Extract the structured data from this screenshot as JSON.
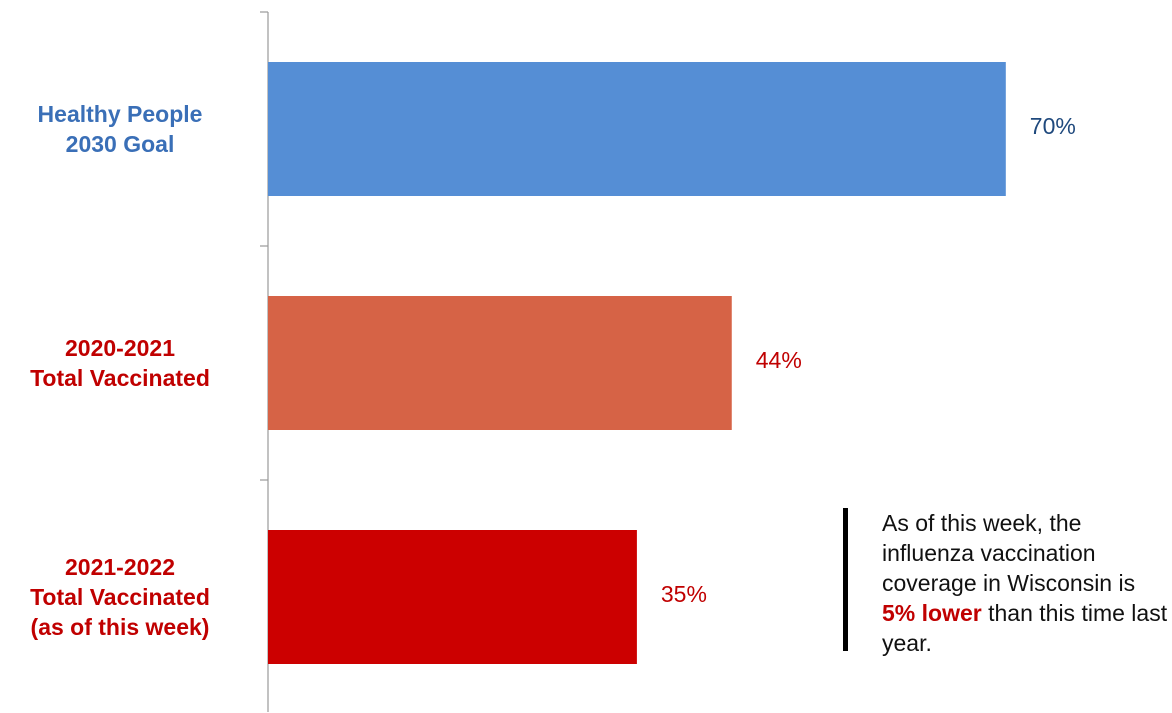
{
  "chart_data": {
    "type": "bar",
    "orientation": "horizontal",
    "categories": [
      [
        "Healthy People",
        "2030 Goal"
      ],
      [
        "2020-2021",
        "Total Vaccinated"
      ],
      [
        "2021-2022",
        "Total Vaccinated",
        "(as of this week)"
      ]
    ],
    "values": [
      70,
      44,
      35
    ],
    "value_labels": [
      "70%",
      "44%",
      "35%"
    ],
    "bar_colors": [
      "#558ed5",
      "#d66346",
      "#cc0000"
    ],
    "label_colors": [
      "#3a6fb7",
      "#c00000",
      "#c00000"
    ],
    "value_label_colors": [
      "#1f497d",
      "#c00000",
      "#c00000"
    ],
    "xlim": [
      0,
      100
    ],
    "grid": false,
    "legend": "none"
  },
  "annotation": {
    "text_before": "As of this week, the influenza vaccination coverage in Wisconsin is ",
    "highlight": "5% lower",
    "text_after": " than this time last year.",
    "highlight_color": "#c00000"
  }
}
